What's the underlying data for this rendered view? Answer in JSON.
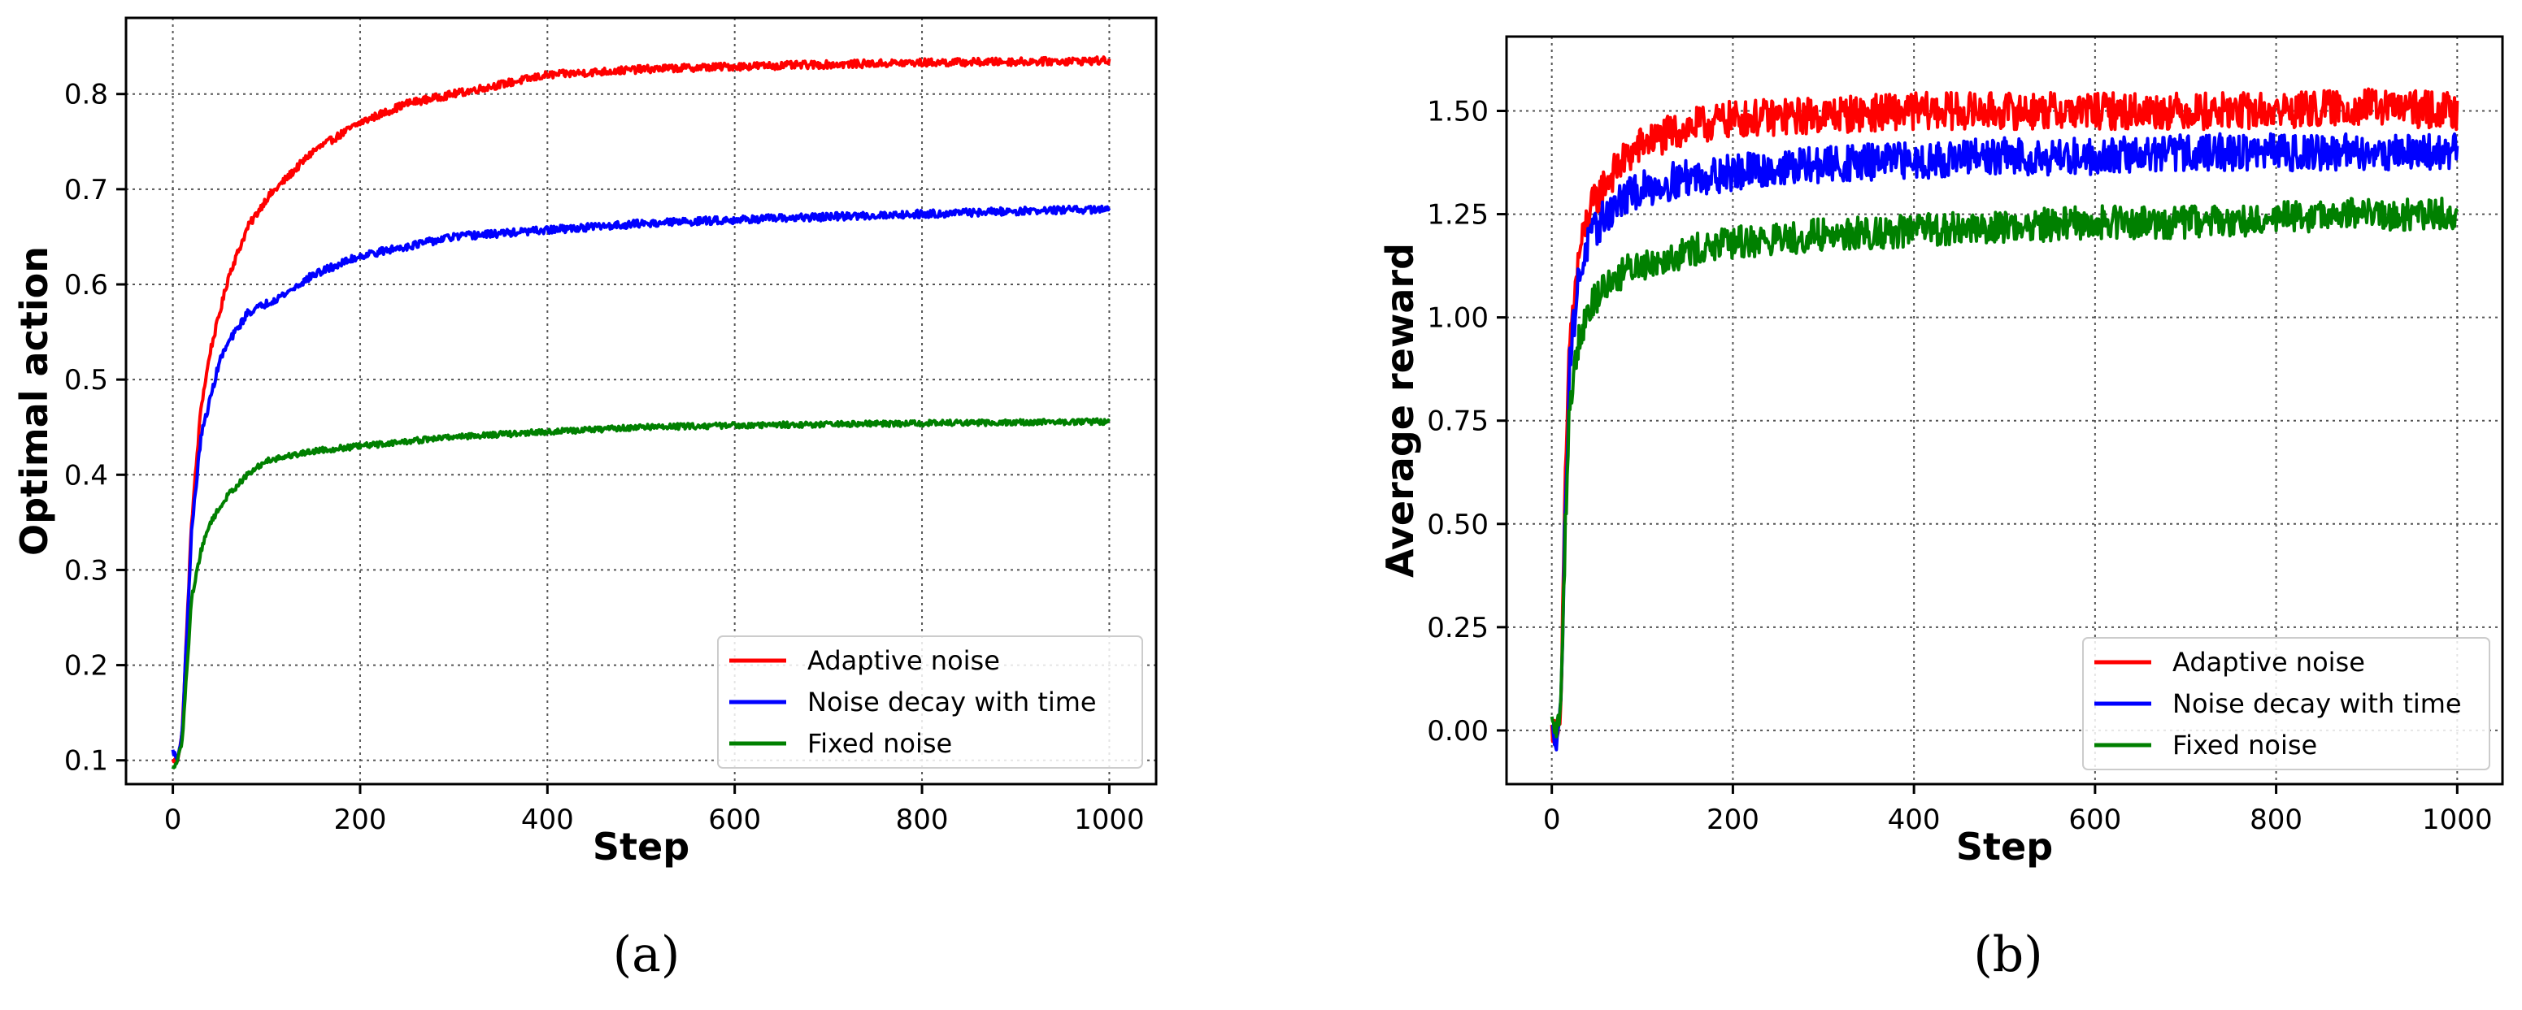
{
  "chart_data": [
    {
      "type": "line",
      "panel_caption": "(a)",
      "title": "",
      "xlabel": "Step",
      "ylabel": "Optimal action",
      "xlim": [
        -50,
        1050
      ],
      "ylim": [
        0.075,
        0.88
      ],
      "xticks": [
        0,
        200,
        400,
        600,
        800,
        1000
      ],
      "xtick_labels": [
        "0",
        "200",
        "400",
        "600",
        "800",
        "1000"
      ],
      "yticks": [
        0.1,
        0.2,
        0.3,
        0.4,
        0.5,
        0.6,
        0.7,
        0.8
      ],
      "ytick_labels": [
        "0.1",
        "0.2",
        "0.3",
        "0.4",
        "0.5",
        "0.6",
        "0.7",
        "0.8"
      ],
      "grid": true,
      "legend_position": "lower-right",
      "series": [
        {
          "name": "Adaptive noise",
          "color": "#ff0000",
          "noise": 0.004,
          "x": [
            0,
            5,
            10,
            20,
            30,
            40,
            50,
            60,
            80,
            100,
            120,
            150,
            200,
            250,
            300,
            350,
            400,
            500,
            600,
            700,
            800,
            900,
            1000
          ],
          "y": [
            0.1,
            0.1,
            0.13,
            0.35,
            0.47,
            0.53,
            0.57,
            0.61,
            0.66,
            0.69,
            0.71,
            0.74,
            0.77,
            0.79,
            0.8,
            0.81,
            0.82,
            0.826,
            0.829,
            0.831,
            0.833,
            0.834,
            0.835
          ]
        },
        {
          "name": "Noise decay with time",
          "color": "#0000ff",
          "noise": 0.004,
          "x": [
            0,
            5,
            10,
            20,
            30,
            40,
            50,
            60,
            80,
            100,
            120,
            150,
            200,
            250,
            300,
            400,
            500,
            600,
            700,
            800,
            900,
            1000
          ],
          "y": [
            0.11,
            0.1,
            0.13,
            0.34,
            0.44,
            0.48,
            0.52,
            0.54,
            0.57,
            0.58,
            0.59,
            0.61,
            0.63,
            0.64,
            0.65,
            0.657,
            0.664,
            0.668,
            0.671,
            0.674,
            0.677,
            0.679
          ]
        },
        {
          "name": "Fixed noise",
          "color": "#008000",
          "noise": 0.003,
          "x": [
            0,
            5,
            10,
            20,
            30,
            40,
            60,
            80,
            100,
            150,
            200,
            300,
            400,
            500,
            600,
            700,
            800,
            900,
            1000
          ],
          "y": [
            0.09,
            0.1,
            0.12,
            0.27,
            0.32,
            0.35,
            0.38,
            0.4,
            0.415,
            0.425,
            0.43,
            0.44,
            0.445,
            0.45,
            0.452,
            0.453,
            0.454,
            0.455,
            0.456
          ]
        }
      ]
    },
    {
      "type": "line",
      "panel_caption": "(b)",
      "title": "",
      "xlabel": "Step",
      "ylabel": "Average reward",
      "xlim": [
        -50,
        1050
      ],
      "ylim": [
        -0.13,
        1.68
      ],
      "xticks": [
        0,
        200,
        400,
        600,
        800,
        1000
      ],
      "xtick_labels": [
        "0",
        "200",
        "400",
        "600",
        "800",
        "1000"
      ],
      "yticks": [
        0.0,
        0.25,
        0.5,
        0.75,
        1.0,
        1.25,
        1.5
      ],
      "ytick_labels": [
        "0.00",
        "0.25",
        "0.50",
        "0.75",
        "1.00",
        "1.25",
        "1.50"
      ],
      "grid": true,
      "legend_position": "lower-right",
      "series": [
        {
          "name": "Adaptive noise",
          "color": "#ff0000",
          "noise": 0.045,
          "x": [
            0,
            5,
            10,
            15,
            20,
            30,
            40,
            60,
            80,
            100,
            150,
            200,
            300,
            400,
            500,
            600,
            700,
            800,
            900,
            1000
          ],
          "y": [
            0.0,
            0.0,
            0.05,
            0.6,
            0.95,
            1.15,
            1.25,
            1.33,
            1.38,
            1.42,
            1.46,
            1.48,
            1.49,
            1.5,
            1.5,
            1.5,
            1.5,
            1.5,
            1.51,
            1.5
          ]
        },
        {
          "name": "Noise decay with time",
          "color": "#0000ff",
          "noise": 0.045,
          "x": [
            0,
            5,
            10,
            15,
            20,
            30,
            40,
            60,
            80,
            100,
            150,
            200,
            300,
            400,
            500,
            600,
            700,
            800,
            900,
            1000
          ],
          "y": [
            0.0,
            -0.02,
            0.05,
            0.55,
            0.9,
            1.1,
            1.18,
            1.25,
            1.29,
            1.31,
            1.34,
            1.35,
            1.37,
            1.38,
            1.39,
            1.39,
            1.4,
            1.4,
            1.4,
            1.4
          ]
        },
        {
          "name": "Fixed noise",
          "color": "#008000",
          "noise": 0.04,
          "x": [
            0,
            5,
            10,
            15,
            20,
            30,
            40,
            60,
            80,
            100,
            150,
            200,
            300,
            400,
            500,
            600,
            700,
            800,
            900,
            1000
          ],
          "y": [
            0.02,
            0.0,
            0.05,
            0.5,
            0.8,
            0.95,
            1.02,
            1.08,
            1.11,
            1.13,
            1.16,
            1.18,
            1.2,
            1.21,
            1.22,
            1.23,
            1.23,
            1.24,
            1.25,
            1.25
          ]
        }
      ]
    }
  ]
}
